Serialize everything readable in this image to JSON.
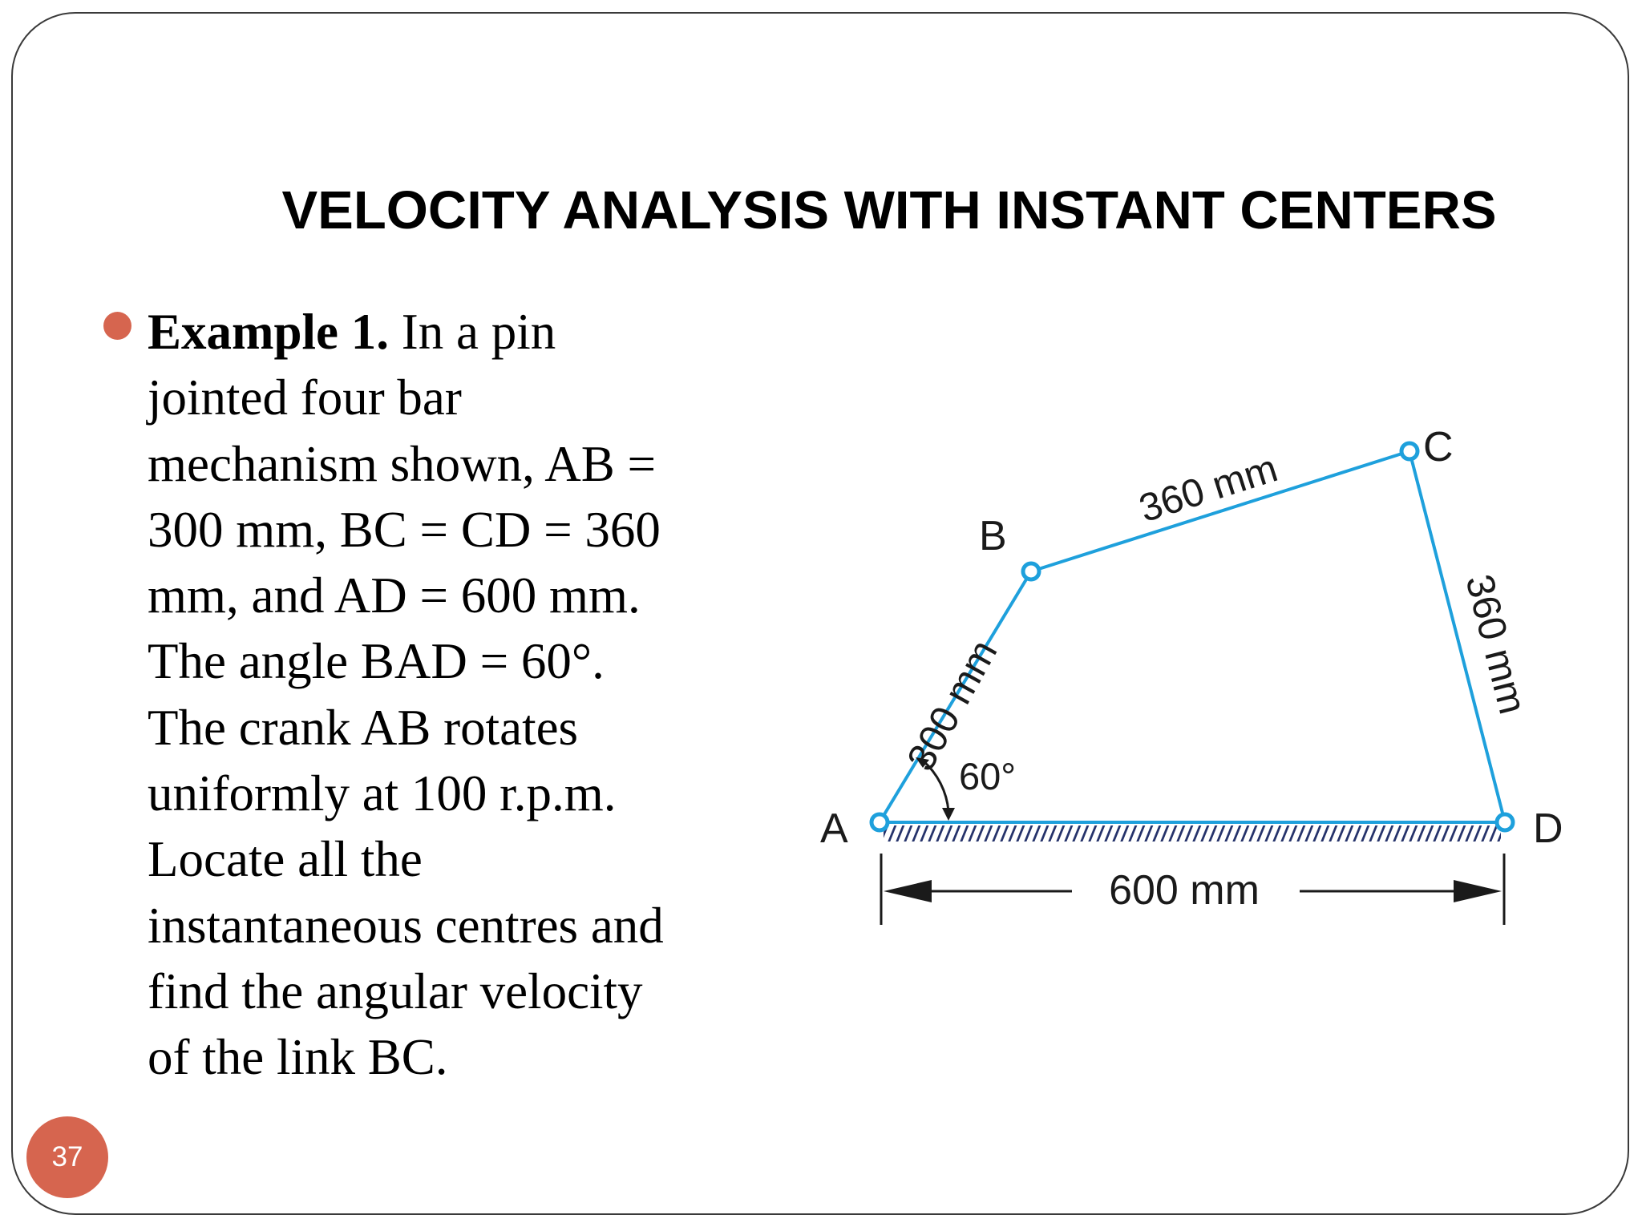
{
  "slide": {
    "title": "VELOCITY ANALYSIS WITH INSTANT CENTERS",
    "page_number": "37",
    "accent_color": "#d6654f"
  },
  "body": {
    "lead": "Example 1.",
    "line1_rest": " In a pin",
    "lines": [
      "jointed four bar",
      "mechanism shown, AB =",
      "300 mm, BC = CD = 360",
      "mm, and AD = 600 mm.",
      "The angle BAD = 60°.",
      "The crank AB rotates",
      "uniformly at 100 r.p.m.",
      "Locate all the",
      "instantaneous centres and",
      "find the angular velocity",
      "of the link BC."
    ]
  },
  "diagram": {
    "link_color": "#1ea0dc",
    "points": {
      "A": "A",
      "B": "B",
      "C": "C",
      "D": "D"
    },
    "labels": {
      "ab": "300 mm",
      "bc": "360 mm",
      "cd": "360 mm",
      "ad": "600 mm",
      "angle": "60°"
    }
  }
}
